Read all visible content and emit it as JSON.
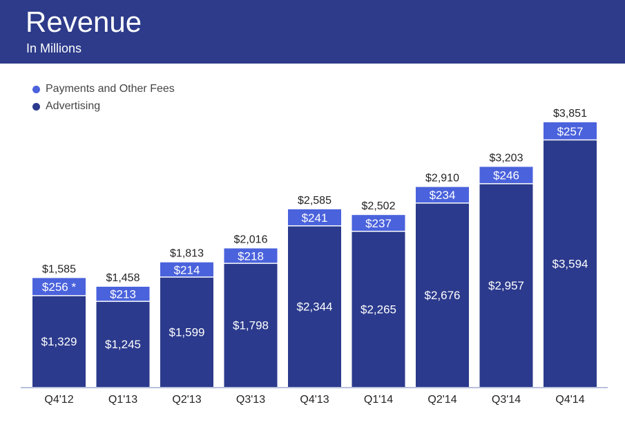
{
  "header": {
    "title": "Revenue",
    "subtitle": "In Millions"
  },
  "colors": {
    "header": "#2d3b8a",
    "advertising": "#2b3a8c",
    "payments": "#4a62dc",
    "axis": "#b9c0dc"
  },
  "chart_data": {
    "type": "bar",
    "stacked": true,
    "title": "Revenue",
    "subtitle": "In Millions",
    "categories": [
      "Q4'12",
      "Q1'13",
      "Q2'13",
      "Q3'13",
      "Q4'13",
      "Q1'14",
      "Q2'14",
      "Q3'14",
      "Q4'14"
    ],
    "series": [
      {
        "name": "Advertising",
        "values": [
          1329,
          1245,
          1599,
          1798,
          2344,
          2265,
          2676,
          2957,
          3594
        ],
        "labels": [
          "$1,329",
          "$1,245",
          "$1,599",
          "$1,798",
          "$2,344",
          "$2,265",
          "$2,676",
          "$2,957",
          "$3,594"
        ]
      },
      {
        "name": "Payments and Other Fees",
        "values": [
          256,
          213,
          214,
          218,
          241,
          237,
          234,
          246,
          257
        ],
        "labels": [
          "$256 *",
          "$213",
          "$214",
          "$218",
          "$241",
          "$237",
          "$234",
          "$246",
          "$257"
        ]
      }
    ],
    "totals": [
      1585,
      1458,
      1813,
      2016,
      2585,
      2502,
      2910,
      3203,
      3851
    ],
    "total_labels": [
      "$1,585",
      "$1,458",
      "$1,813",
      "$2,016",
      "$2,585",
      "$2,502",
      "$2,910",
      "$3,203",
      "$3,851"
    ],
    "ylim": [
      0,
      3851
    ],
    "grid": false,
    "legend": "top-left"
  }
}
